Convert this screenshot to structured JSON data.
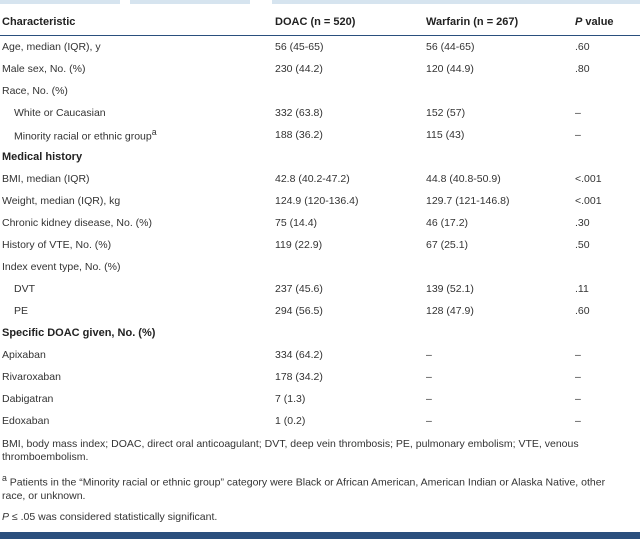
{
  "header": {
    "characteristic": "Characteristic",
    "doac": "DOAC (n = 520)",
    "warfarin": "Warfarin (n = 267)",
    "p_letter": "P",
    "p_rest": " value"
  },
  "rows": [
    {
      "type": "data",
      "label": "Age, median (IQR), y",
      "doac": "56 (45-65)",
      "warfarin": "56 (44-65)",
      "p": ".60"
    },
    {
      "type": "data",
      "label": "Male sex, No. (%)",
      "doac": "230 (44.2)",
      "warfarin": "120 (44.9)",
      "p": ".80"
    },
    {
      "type": "data",
      "label": "Race, No. (%)",
      "doac": "",
      "warfarin": "",
      "p": ""
    },
    {
      "type": "sub",
      "label": "White or Caucasian",
      "doac": "332 (63.8)",
      "warfarin": "152 (57)",
      "p": "–"
    },
    {
      "type": "sub",
      "label": "Minority racial or ethnic group",
      "sup": "a",
      "doac": "188 (36.2)",
      "warfarin": "115 (43)",
      "p": "–"
    },
    {
      "type": "section",
      "label": "Medical history"
    },
    {
      "type": "data",
      "label": "BMI, median (IQR)",
      "doac": "42.8 (40.2-47.2)",
      "warfarin": "44.8 (40.8-50.9)",
      "p": "<.001"
    },
    {
      "type": "data",
      "label": "Weight, median (IQR), kg",
      "doac": "124.9 (120-136.4)",
      "warfarin": "129.7 (121-146.8)",
      "p": "<.001"
    },
    {
      "type": "data",
      "label": "Chronic kidney disease, No. (%)",
      "doac": "75 (14.4)",
      "warfarin": "46 (17.2)",
      "p": ".30"
    },
    {
      "type": "data",
      "label": "History of VTE, No. (%)",
      "doac": "119 (22.9)",
      "warfarin": "67 (25.1)",
      "p": ".50"
    },
    {
      "type": "data",
      "label": "Index event type, No. (%)",
      "doac": "",
      "warfarin": "",
      "p": ""
    },
    {
      "type": "sub",
      "label": "DVT",
      "doac": "237 (45.6)",
      "warfarin": "139 (52.1)",
      "p": ".11"
    },
    {
      "type": "sub",
      "label": "PE",
      "doac": "294 (56.5)",
      "warfarin": "128 (47.9)",
      "p": ".60"
    },
    {
      "type": "section",
      "label": "Specific DOAC given, No. (%)"
    },
    {
      "type": "data",
      "label": "Apixaban",
      "doac": "334 (64.2)",
      "warfarin": "–",
      "p": "–"
    },
    {
      "type": "data",
      "label": "Rivaroxaban",
      "doac": "178 (34.2)",
      "warfarin": "–",
      "p": "–"
    },
    {
      "type": "data",
      "label": "Dabigatran",
      "doac": "7 (1.3)",
      "warfarin": "–",
      "p": "–"
    },
    {
      "type": "data",
      "label": "Edoxaban",
      "doac": "1 (0.2)",
      "warfarin": "–",
      "p": "–"
    }
  ],
  "footnotes": {
    "abbrev": "BMI, body mass index; DOAC, direct oral anticoagulant; DVT, deep vein thrombosis; PE, pulmonary embolism; VTE, venous thromboembolism.",
    "a_mark": "a",
    "a_text": " Patients in the “Minority racial or ethnic group” category were Black or African American, American Indian or Alaska Native, other race, or unknown.",
    "sig_p": "P",
    "sig_text": " ≤ .05 was considered statistically significant."
  },
  "colors": {
    "rule": "#2a4f7d",
    "top_tint": "#d6e4ef"
  }
}
